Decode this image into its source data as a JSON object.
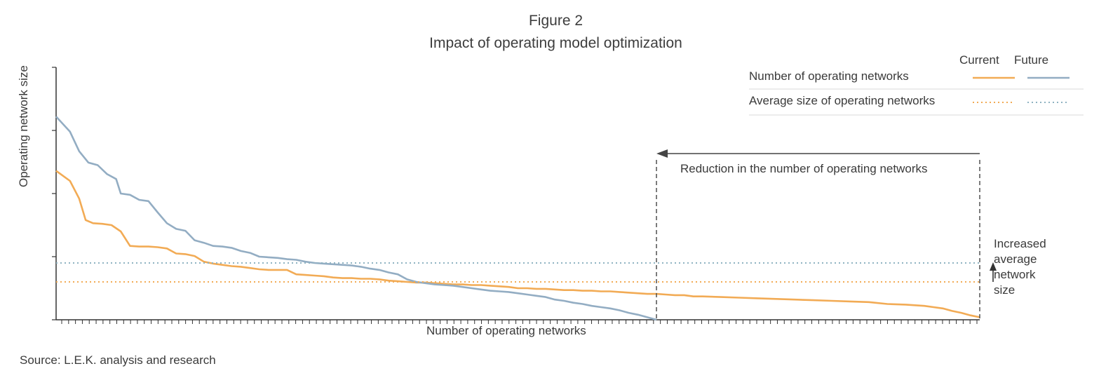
{
  "figure_label": "Figure 2",
  "title": "Impact of operating model optimization",
  "source": "Source: L.E.K. analysis and research",
  "legend": {
    "col_current": "Current",
    "col_future": "Future",
    "row_line": "Number of operating networks",
    "row_avg": "Average size of operating networks"
  },
  "annotations": {
    "reduction": "Reduction in the number of operating networks",
    "increased": [
      "Increased",
      "average",
      "network",
      "size"
    ]
  },
  "colors": {
    "current": "#f2ab55",
    "future": "#93adc3",
    "avg_future": "#8fb3c2",
    "axis": "#333333"
  },
  "chart_data": {
    "type": "line",
    "xlabel": "Number of operating networks",
    "ylabel": "Operating network size",
    "xlim": [
      0,
      100
    ],
    "ylim": [
      0,
      4
    ],
    "grid": false,
    "legend_placement": "top-right",
    "series": [
      {
        "name": "Current",
        "style": "solid",
        "x": [
          0,
          1.5,
          2.5,
          3.2,
          4,
          5,
          6,
          7,
          8,
          9,
          10,
          11,
          12,
          13,
          14,
          15,
          16,
          17,
          18,
          19,
          20,
          21,
          22,
          23,
          24,
          25,
          26,
          27,
          28,
          29,
          30,
          31,
          32,
          33,
          34,
          35,
          36,
          37,
          38,
          39,
          40,
          41,
          42,
          43,
          44,
          45,
          46,
          47,
          48,
          49,
          50,
          51,
          52,
          53,
          54,
          55,
          56,
          57,
          58,
          59,
          60,
          61,
          62,
          63,
          64,
          65,
          66,
          67,
          68,
          69,
          70,
          72,
          74,
          76,
          78,
          80,
          82,
          84,
          86,
          88,
          90,
          92,
          94,
          95,
          96,
          97,
          98,
          99,
          100
        ],
        "y": [
          2.36,
          2.2,
          1.92,
          1.58,
          1.53,
          1.52,
          1.5,
          1.4,
          1.17,
          1.16,
          1.16,
          1.15,
          1.13,
          1.05,
          1.04,
          1.01,
          0.92,
          0.89,
          0.87,
          0.85,
          0.84,
          0.82,
          0.8,
          0.79,
          0.79,
          0.79,
          0.72,
          0.71,
          0.7,
          0.69,
          0.67,
          0.66,
          0.66,
          0.65,
          0.65,
          0.64,
          0.62,
          0.61,
          0.6,
          0.59,
          0.59,
          0.58,
          0.57,
          0.56,
          0.56,
          0.55,
          0.55,
          0.54,
          0.53,
          0.52,
          0.5,
          0.5,
          0.49,
          0.49,
          0.48,
          0.47,
          0.47,
          0.46,
          0.46,
          0.45,
          0.45,
          0.44,
          0.43,
          0.42,
          0.41,
          0.41,
          0.4,
          0.39,
          0.39,
          0.37,
          0.37,
          0.36,
          0.35,
          0.34,
          0.33,
          0.32,
          0.31,
          0.3,
          0.29,
          0.28,
          0.25,
          0.24,
          0.22,
          0.2,
          0.18,
          0.14,
          0.11,
          0.07,
          0.04
        ]
      },
      {
        "name": "Future",
        "style": "solid",
        "x": [
          0,
          1.5,
          2.5,
          3.5,
          4.5,
          5.5,
          6.5,
          7,
          8,
          9,
          10,
          11,
          12,
          13,
          14,
          15,
          16,
          17,
          18,
          19,
          20,
          21,
          22,
          23,
          24,
          25,
          26,
          27,
          28,
          29,
          30,
          31,
          32,
          33,
          34,
          35,
          36,
          37,
          38,
          39,
          40,
          41,
          42,
          43,
          44,
          45,
          46,
          47,
          48,
          49,
          50,
          51,
          52,
          53,
          54,
          55,
          56,
          57,
          58,
          59,
          60,
          61,
          62,
          63,
          64,
          65
        ],
        "y": [
          3.22,
          2.98,
          2.67,
          2.49,
          2.45,
          2.31,
          2.23,
          2.0,
          1.98,
          1.9,
          1.88,
          1.7,
          1.53,
          1.44,
          1.41,
          1.26,
          1.22,
          1.17,
          1.16,
          1.14,
          1.09,
          1.06,
          1.0,
          0.99,
          0.98,
          0.96,
          0.95,
          0.92,
          0.9,
          0.89,
          0.88,
          0.87,
          0.86,
          0.84,
          0.81,
          0.79,
          0.75,
          0.72,
          0.64,
          0.6,
          0.58,
          0.56,
          0.55,
          0.54,
          0.52,
          0.5,
          0.48,
          0.46,
          0.45,
          0.44,
          0.42,
          0.4,
          0.38,
          0.36,
          0.32,
          0.3,
          0.27,
          0.25,
          0.22,
          0.2,
          0.18,
          0.15,
          0.11,
          0.08,
          0.04,
          0.0
        ]
      },
      {
        "name": "Current average",
        "style": "dotted",
        "x": [
          0,
          100
        ],
        "y": [
          0.6,
          0.6
        ]
      },
      {
        "name": "Future average",
        "style": "dotted",
        "x": [
          0,
          100
        ],
        "y": [
          0.9,
          0.9
        ]
      }
    ],
    "markers": {
      "reduction_from_x": 100,
      "reduction_to_x": 65
    }
  }
}
